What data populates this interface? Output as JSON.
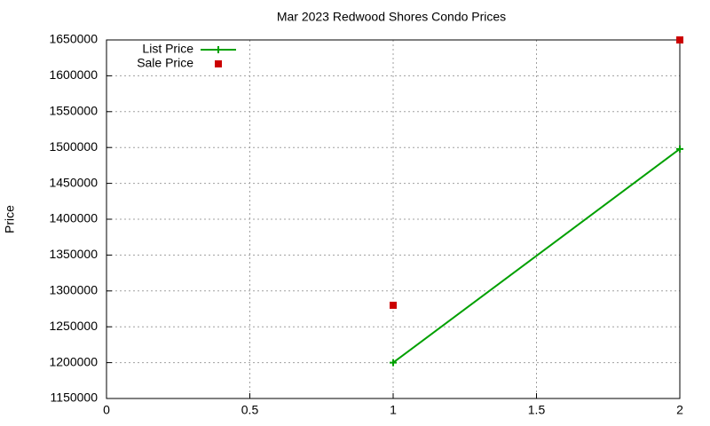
{
  "chart_data": {
    "type": "line",
    "title": "Mar 2023 Redwood Shores Condo Prices",
    "y_label": "Price",
    "x": [
      1,
      2
    ],
    "series": [
      {
        "name": "List Price",
        "color": "#00a000",
        "style": "linespoints",
        "values": [
          1200000,
          1498000
        ]
      },
      {
        "name": "Sale Price",
        "color": "#cc0000",
        "style": "points",
        "values": [
          1280000,
          1650000
        ]
      }
    ],
    "xlim": [
      0,
      2
    ],
    "xticks": [
      0,
      0.5,
      1,
      1.5,
      2
    ],
    "ylim": [
      1150000,
      1650000
    ],
    "yticks": [
      1150000,
      1200000,
      1250000,
      1300000,
      1350000,
      1400000,
      1450000,
      1500000,
      1550000,
      1600000,
      1650000
    ],
    "grid": true,
    "legend": "top-left"
  }
}
